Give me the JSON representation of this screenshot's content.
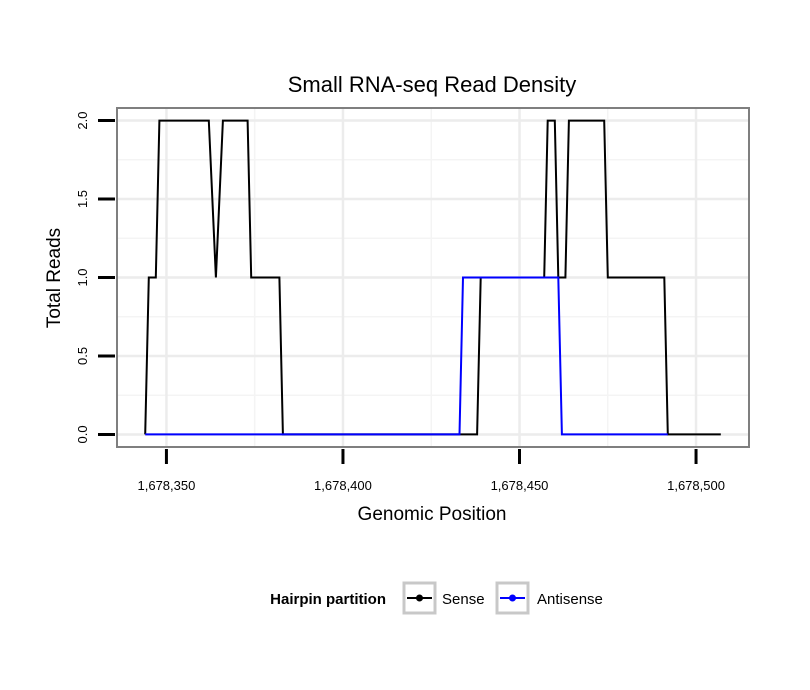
{
  "chart_data": {
    "type": "line",
    "title": "Small RNA-seq Read Density",
    "xlabel": "Genomic Position",
    "ylabel": "Total Reads",
    "xlim": [
      1678336,
      1678515
    ],
    "ylim": [
      -0.08,
      2.08
    ],
    "x_ticks": [
      1678350,
      1678400,
      1678450,
      1678500
    ],
    "x_tick_labels": [
      "1,678,350",
      "1,678,400",
      "1,678,450",
      "1,678,500"
    ],
    "y_ticks": [
      0,
      0.5,
      1,
      1.5,
      2
    ],
    "y_tick_labels": [
      "0.0",
      "0.5",
      "1.0",
      "1.5",
      "2.0"
    ],
    "grid": true,
    "legend": {
      "title": "Hairpin partition",
      "position": "bottom",
      "entries": [
        "Sense",
        "Antisense"
      ]
    },
    "series": [
      {
        "name": "Sense",
        "color": "#000000",
        "points": [
          [
            1678344,
            0
          ],
          [
            1678345,
            1
          ],
          [
            1678347,
            1
          ],
          [
            1678348,
            2
          ],
          [
            1678362,
            2
          ],
          [
            1678364,
            1
          ],
          [
            1678366,
            2
          ],
          [
            1678373,
            2
          ],
          [
            1678374,
            1
          ],
          [
            1678382,
            1
          ],
          [
            1678383,
            0
          ],
          [
            1678438,
            0
          ],
          [
            1678439,
            1
          ],
          [
            1678457,
            1
          ],
          [
            1678458,
            2
          ],
          [
            1678460,
            2
          ],
          [
            1678461,
            1
          ],
          [
            1678463,
            1
          ],
          [
            1678464,
            2
          ],
          [
            1678474,
            2
          ],
          [
            1678475,
            1
          ],
          [
            1678491,
            1
          ],
          [
            1678492,
            0
          ],
          [
            1678507,
            0
          ]
        ]
      },
      {
        "name": "Antisense",
        "color": "#0000ff",
        "points": [
          [
            1678344,
            0
          ],
          [
            1678433,
            0
          ],
          [
            1678434,
            1
          ],
          [
            1678461,
            1
          ],
          [
            1678462,
            0
          ],
          [
            1678492,
            0
          ]
        ]
      }
    ]
  }
}
